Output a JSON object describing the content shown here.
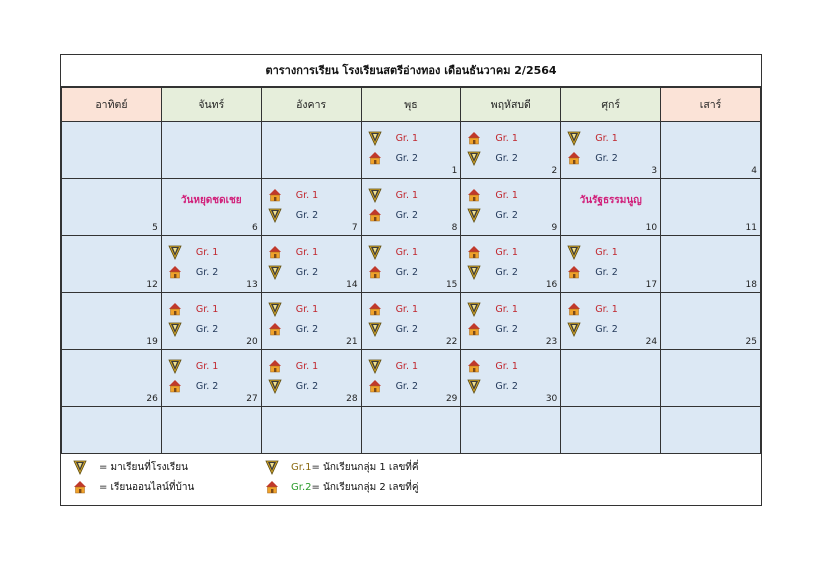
{
  "title": "ตารางการเรียน โรงเรียนสตรีอ่างทอง เดือนธันวาคม  2/2564",
  "weekdays": [
    "อาทิตย์",
    "จันทร์",
    "อังคาร",
    "พุธ",
    "พฤหัสบดี",
    "ศุกร์",
    "เสาร์"
  ],
  "group_labels": {
    "g1": "Gr. 1",
    "g2": "Gr. 2"
  },
  "icons": {
    "school": "school-pencil-icon",
    "home": "home-icon"
  },
  "colors": {
    "weekend_header": "#fbe3d7",
    "weekday_header": "#e6eedb",
    "cell": "#dce8f4",
    "gr1": "#c0262d",
    "gr2": "#23395a",
    "holiday": "#d1207a"
  },
  "weeks": [
    [
      {
        "n": ""
      },
      {
        "n": ""
      },
      {
        "n": ""
      },
      {
        "n": "1",
        "a": "school",
        "b": "home"
      },
      {
        "n": "2",
        "a": "home",
        "b": "school"
      },
      {
        "n": "3",
        "a": "school",
        "b": "home"
      },
      {
        "n": "4"
      }
    ],
    [
      {
        "n": "5"
      },
      {
        "n": "6",
        "holiday": "วันหยุดชดเชย"
      },
      {
        "n": "7",
        "a": "home",
        "b": "school"
      },
      {
        "n": "8",
        "a": "school",
        "b": "home"
      },
      {
        "n": "9",
        "a": "home",
        "b": "school"
      },
      {
        "n": "10",
        "holiday": "วันรัฐธรรมนูญ"
      },
      {
        "n": "11"
      }
    ],
    [
      {
        "n": "12"
      },
      {
        "n": "13",
        "a": "school",
        "b": "home"
      },
      {
        "n": "14",
        "a": "home",
        "b": "school"
      },
      {
        "n": "15",
        "a": "school",
        "b": "home"
      },
      {
        "n": "16",
        "a": "home",
        "b": "school"
      },
      {
        "n": "17",
        "a": "school",
        "b": "home"
      },
      {
        "n": "18"
      }
    ],
    [
      {
        "n": "19"
      },
      {
        "n": "20",
        "a": "home",
        "b": "school"
      },
      {
        "n": "21",
        "a": "school",
        "b": "home"
      },
      {
        "n": "22",
        "a": "home",
        "b": "school"
      },
      {
        "n": "23",
        "a": "school",
        "b": "home"
      },
      {
        "n": "24",
        "a": "home",
        "b": "school"
      },
      {
        "n": "25"
      }
    ],
    [
      {
        "n": "26"
      },
      {
        "n": "27",
        "a": "school",
        "b": "home"
      },
      {
        "n": "28",
        "a": "home",
        "b": "school"
      },
      {
        "n": "29",
        "a": "school",
        "b": "home"
      },
      {
        "n": "30",
        "a": "home",
        "b": "school"
      },
      {
        "n": ""
      },
      {
        "n": ""
      }
    ],
    [
      {
        "n": ""
      },
      {
        "n": ""
      },
      {
        "n": ""
      },
      {
        "n": ""
      },
      {
        "n": ""
      },
      {
        "n": ""
      },
      {
        "n": ""
      }
    ]
  ],
  "legend": {
    "school_text": "= มาเรียนที่โรงเรียน",
    "home_text": "= เรียนออนไลน์ที่บ้าน",
    "gr1_label": "Gr.1",
    "gr1_text": " = นักเรียนกลุ่ม 1 เลขที่คี่",
    "gr2_label": "Gr.2",
    "gr2_text": " = นักเรียนกลุ่ม 2 เลขที่คู่"
  }
}
